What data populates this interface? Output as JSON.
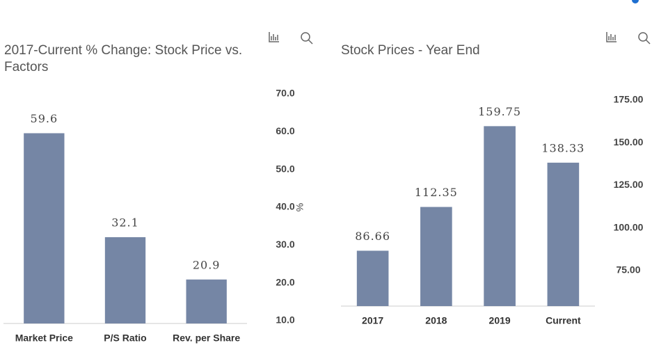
{
  "chart_data": [
    {
      "type": "bar",
      "title": "2017-Current % Change: Stock Price vs. Factors",
      "categories": [
        "Market Price",
        "P/S Ratio",
        "Rev. per Share"
      ],
      "values": [
        59.6,
        32.1,
        20.9
      ],
      "color": "#7586a5",
      "y_label": "%",
      "ylim": [
        10,
        70
      ],
      "yticks": [
        {
          "value": 10,
          "label": "10.0"
        },
        {
          "value": 20,
          "label": "20.0"
        },
        {
          "value": 30,
          "label": "30.0"
        },
        {
          "value": 40,
          "label": "40.0"
        },
        {
          "value": 50,
          "label": "50.0"
        },
        {
          "value": 60,
          "label": "60.0"
        },
        {
          "value": 70,
          "label": "70.0"
        }
      ],
      "grid": false
    },
    {
      "type": "bar",
      "title": "Stock Prices - Year End",
      "categories": [
        "2017",
        "2018",
        "2019",
        "Current"
      ],
      "values": [
        86.66,
        112.35,
        159.75,
        138.33
      ],
      "color": "#7586a5",
      "ylim": [
        55,
        175
      ],
      "yticks": [
        {
          "value": 75,
          "label": "75.00"
        },
        {
          "value": 100,
          "label": "100.00"
        },
        {
          "value": 125,
          "label": "125.00"
        },
        {
          "value": 150,
          "label": "150.00"
        },
        {
          "value": 175,
          "label": "175.00"
        }
      ],
      "grid": false
    }
  ]
}
